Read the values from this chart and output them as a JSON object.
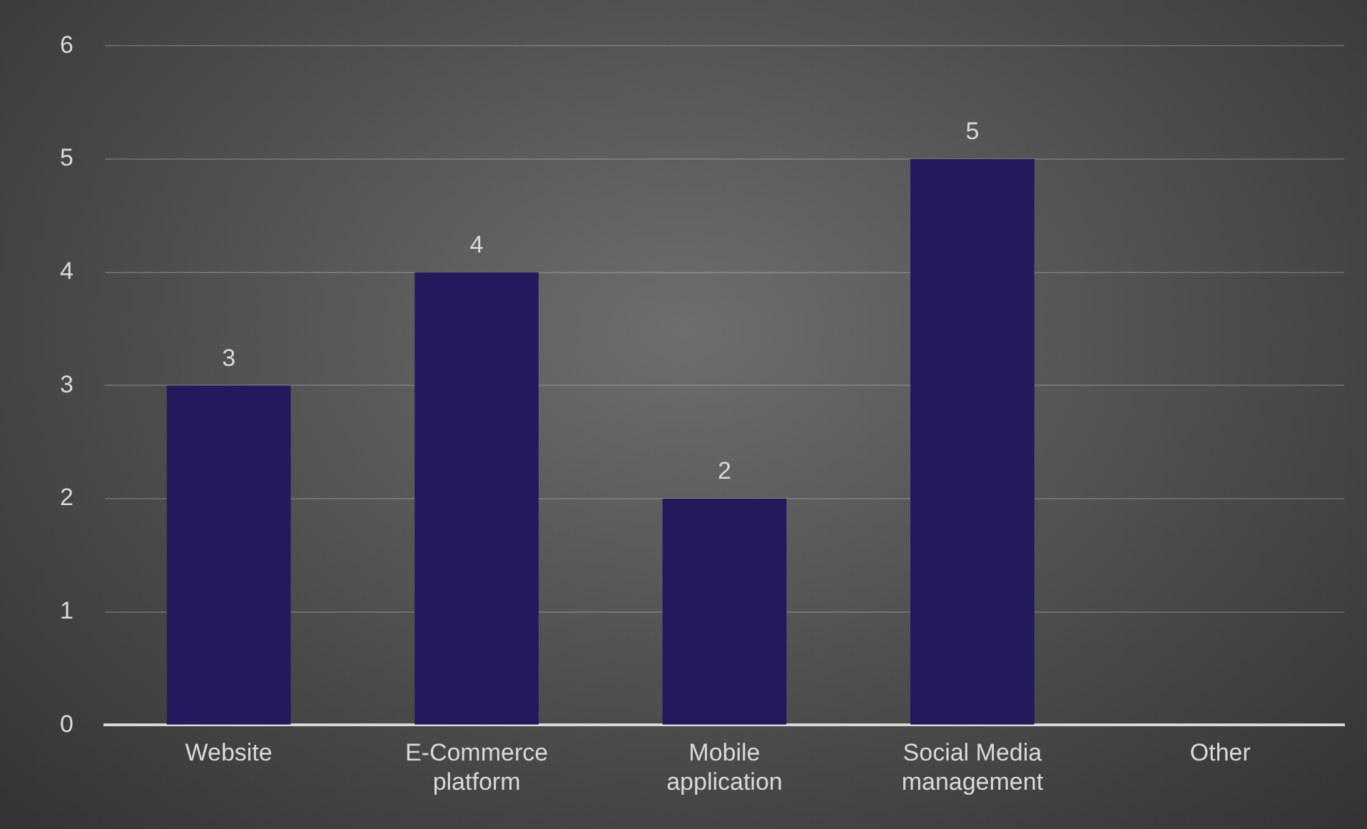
{
  "chart_data": {
    "type": "bar",
    "categories": [
      "Website",
      "E-Commerce platform",
      "Mobile application",
      "Social Media management",
      "Other"
    ],
    "values": [
      3,
      4,
      2,
      5,
      0
    ],
    "value_labels": [
      "3",
      "4",
      "2",
      "5",
      null
    ],
    "color": "#221a5c",
    "ylim": [
      0,
      6
    ],
    "yticks": [
      0,
      1,
      2,
      3,
      4,
      5,
      6
    ],
    "grid": "y",
    "legend": false
  }
}
